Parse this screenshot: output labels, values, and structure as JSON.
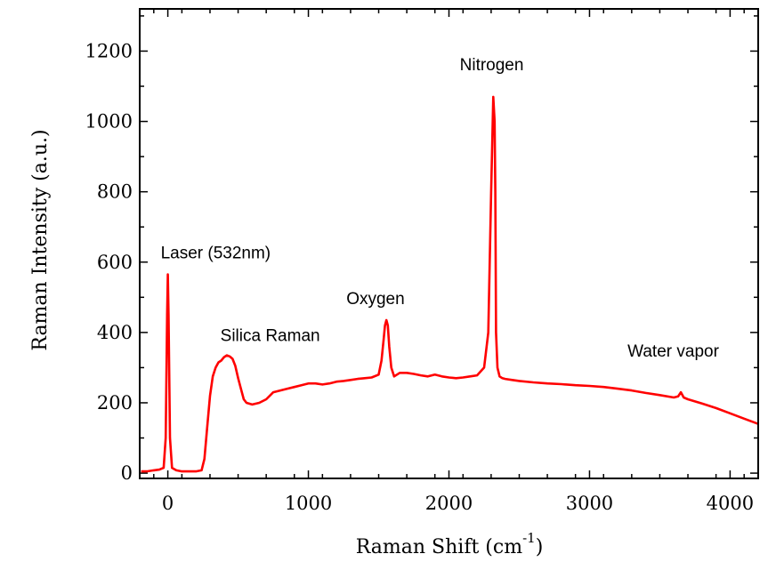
{
  "chart_data": {
    "type": "line",
    "title": "",
    "xlabel": "Raman Shift (cm",
    "xlabel_sup": "-1",
    "xlabel_close": ")",
    "ylabel": "Raman Intensity (a.u.)",
    "xlim": [
      -200,
      4200
    ],
    "ylim": [
      -15,
      1320
    ],
    "xticks": [
      0,
      1000,
      2000,
      3000,
      4000
    ],
    "yticks": [
      0,
      200,
      400,
      600,
      800,
      1000,
      1200
    ],
    "grid": false,
    "line_color": "#ff0000",
    "annotations": [
      {
        "text": "Laser (532nm)",
        "x": 0,
        "y": 565
      },
      {
        "text": "Silica Raman",
        "x": 450,
        "y": 330
      },
      {
        "text": "Oxygen",
        "x": 1555,
        "y": 435
      },
      {
        "text": "Nitrogen",
        "x": 2330,
        "y": 1070
      },
      {
        "text": "Water vapor",
        "x": 3650,
        "y": 230
      }
    ],
    "series": [
      {
        "x": [
          -190,
          -150,
          -100,
          -60,
          -30,
          -15,
          -5,
          0,
          5,
          15,
          30,
          60,
          100,
          150,
          200,
          240,
          260,
          280,
          300,
          320,
          340,
          360,
          380,
          400,
          420,
          440,
          460,
          480,
          500,
          520,
          540,
          560,
          600,
          650,
          700,
          750,
          800,
          850,
          900,
          950,
          1000,
          1050,
          1100,
          1150,
          1200,
          1250,
          1300,
          1350,
          1400,
          1450,
          1500,
          1520,
          1535,
          1545,
          1555,
          1565,
          1575,
          1590,
          1610,
          1650,
          1700,
          1750,
          1800,
          1850,
          1900,
          1950,
          2000,
          2050,
          2100,
          2150,
          2200,
          2250,
          2280,
          2300,
          2315,
          2325,
          2330,
          2335,
          2345,
          2360,
          2380,
          2400,
          2450,
          2500,
          2600,
          2700,
          2800,
          2900,
          3000,
          3100,
          3200,
          3300,
          3400,
          3500,
          3600,
          3630,
          3650,
          3670,
          3700,
          3800,
          3900,
          4000,
          4100,
          4200
        ],
        "y": [
          5,
          5,
          8,
          10,
          15,
          100,
          450,
          565,
          450,
          100,
          15,
          8,
          5,
          5,
          5,
          8,
          40,
          130,
          220,
          275,
          300,
          315,
          320,
          330,
          335,
          332,
          325,
          305,
          270,
          240,
          210,
          200,
          195,
          200,
          210,
          230,
          235,
          240,
          245,
          250,
          255,
          255,
          252,
          255,
          260,
          262,
          265,
          268,
          270,
          272,
          280,
          320,
          380,
          420,
          435,
          420,
          360,
          300,
          275,
          285,
          285,
          282,
          278,
          275,
          280,
          275,
          272,
          270,
          272,
          275,
          278,
          300,
          400,
          800,
          1070,
          1000,
          800,
          400,
          300,
          275,
          270,
          268,
          265,
          262,
          258,
          255,
          253,
          250,
          248,
          245,
          240,
          235,
          228,
          222,
          215,
          218,
          230,
          215,
          210,
          198,
          185,
          170,
          155,
          140
        ]
      }
    ]
  }
}
